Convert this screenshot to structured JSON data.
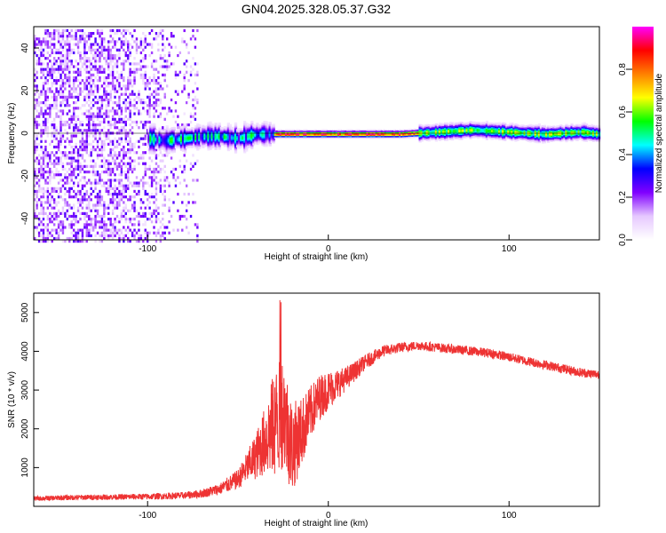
{
  "title": "GN04.2025.328.05.37.G32",
  "chart_data": [
    {
      "type": "heatmap",
      "xlabel": "Height of straight line (km)",
      "ylabel": "Frequency (Hz)",
      "xlim": [
        -163,
        150
      ],
      "ylim": [
        -50,
        50
      ],
      "xticks": [
        -100,
        0,
        100
      ],
      "yticks": [
        -40,
        -20,
        0,
        20,
        40
      ],
      "colorbar": {
        "label": "Normalized spectral amplitude",
        "ticks": [
          0.0,
          0.2,
          0.4,
          0.6,
          0.8
        ],
        "range": [
          0,
          1
        ],
        "colors": [
          "#ffffff",
          "#e6c8ff",
          "#8000ff",
          "#0000ff",
          "#00ffff",
          "#00ff00",
          "#ffff00",
          "#ff8000",
          "#ff0000",
          "#ff00ff"
        ]
      },
      "regions": [
        {
          "name": "noise",
          "x": [
            -163,
            -72
          ],
          "freq": [
            -50,
            50
          ],
          "amplitude": 0.15
        },
        {
          "name": "onset",
          "x": [
            -100,
            -30
          ],
          "freq": [
            -6,
            6
          ],
          "amplitude": 0.5
        },
        {
          "name": "main",
          "x": [
            -30,
            50
          ],
          "freq": [
            -2,
            2
          ],
          "amplitude": 0.95
        },
        {
          "name": "broadening",
          "x": [
            50,
            150
          ],
          "freq": [
            -5,
            5
          ],
          "amplitude": 0.6
        }
      ],
      "center_line_profile": {
        "x": [
          -100,
          -90,
          -80,
          -70,
          -60,
          -50,
          -40,
          -30,
          -20,
          -10,
          0,
          20,
          40,
          60,
          80,
          100,
          120,
          140,
          150
        ],
        "freq": [
          -2,
          -3,
          -2,
          -1,
          -1,
          -2,
          0,
          0,
          0,
          0,
          0,
          0,
          0,
          1,
          2,
          1,
          0,
          1,
          0
        ]
      }
    },
    {
      "type": "line",
      "xlabel": "Height of straight line (km)",
      "ylabel": "SNR (10 * v/v)",
      "xlim": [
        -163,
        150
      ],
      "ylim": [
        0,
        5500
      ],
      "xticks": [
        -100,
        0,
        100
      ],
      "yticks": [
        1000,
        2000,
        3000,
        4000,
        5000
      ],
      "series": [
        {
          "color": "#ee3333",
          "x": [
            -163,
            -140,
            -120,
            -100,
            -80,
            -70,
            -60,
            -50,
            -45,
            -40,
            -35,
            -30,
            -25,
            -20,
            -15,
            -10,
            -5,
            0,
            10,
            20,
            30,
            40,
            50,
            60,
            70,
            80,
            90,
            100,
            110,
            120,
            130,
            140,
            150
          ],
          "y": [
            200,
            230,
            240,
            250,
            280,
            330,
            450,
            700,
            1000,
            1300,
            1700,
            2100,
            2500,
            1500,
            1900,
            2400,
            2800,
            3000,
            3300,
            3700,
            4000,
            4100,
            4150,
            4100,
            4050,
            4000,
            3950,
            3850,
            3750,
            3650,
            3550,
            3450,
            3400
          ],
          "noise": [
            60,
            70,
            70,
            80,
            90,
            110,
            150,
            250,
            400,
            600,
            900,
            1400,
            1500,
            1200,
            900,
            700,
            600,
            500,
            300,
            200,
            150,
            130,
            120,
            120,
            120,
            120,
            120,
            120,
            120,
            120,
            120,
            120,
            120
          ]
        }
      ]
    }
  ]
}
